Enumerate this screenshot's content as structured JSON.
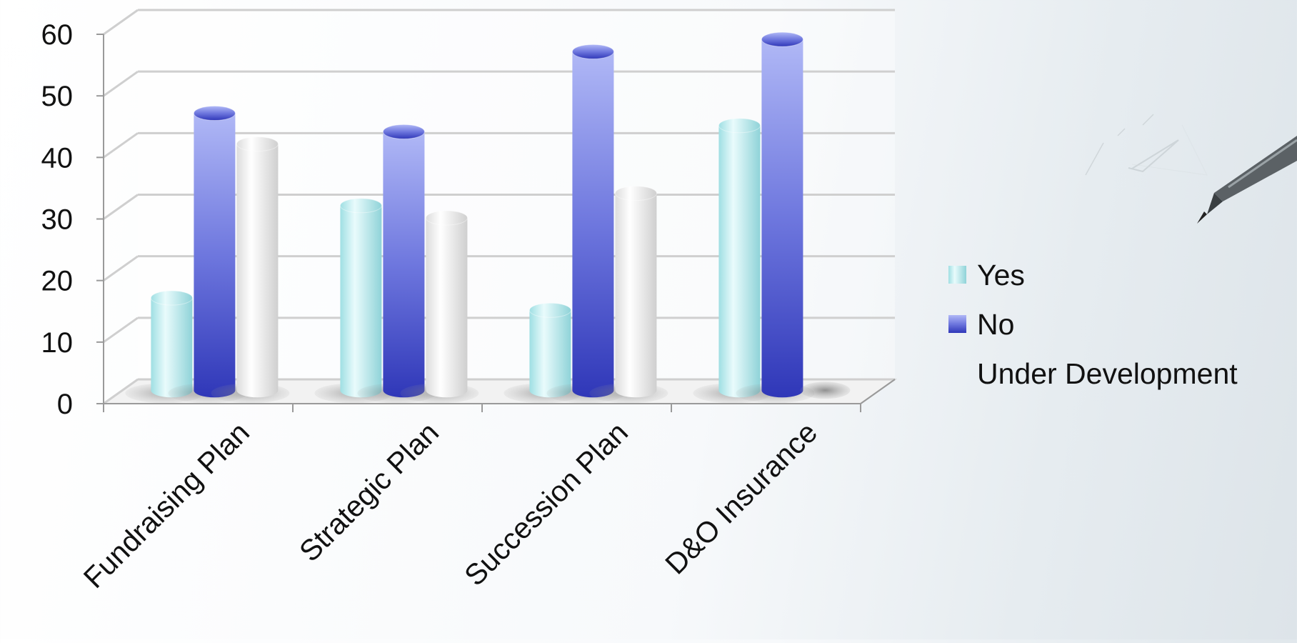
{
  "chart_data": {
    "type": "bar",
    "style": "3d-cylinder",
    "categories": [
      "Fundraising Plan",
      "Strategic Plan",
      "Succession Plan",
      "D&O Insurance"
    ],
    "series": [
      {
        "name": "Yes",
        "values": [
          15,
          30,
          13,
          43
        ],
        "color": "#bff0f2"
      },
      {
        "name": "No",
        "values": [
          45,
          42,
          55,
          57
        ],
        "color": "#5560d6"
      },
      {
        "name": "Under Development",
        "values": [
          40,
          28,
          32,
          0
        ],
        "color": "#f4f4f4"
      }
    ],
    "y_ticks": [
      "0",
      "10",
      "20",
      "30",
      "40",
      "50",
      "60"
    ],
    "ylim": [
      0,
      60
    ],
    "grid": true,
    "legend_position": "right",
    "decoration": "pen-icon"
  }
}
